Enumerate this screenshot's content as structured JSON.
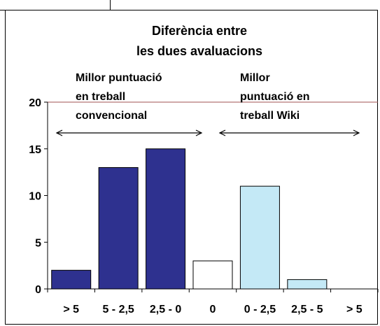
{
  "chart_data": {
    "type": "bar",
    "title_lines": [
      "Diferència entre",
      "les dues avaluacions"
    ],
    "categories": [
      "> 5",
      "5 - 2,5",
      "2,5 - 0",
      "0",
      "0 - 2,5",
      "2,5 - 5",
      "> 5"
    ],
    "values": [
      2,
      13,
      15,
      3,
      11,
      1,
      0
    ],
    "bar_colors": [
      "#2e318f",
      "#2e318f",
      "#2e318f",
      "#ffffff",
      "#c4e9f6",
      "#c4e9f6",
      "#c4e9f6"
    ],
    "ylim": [
      0,
      20
    ],
    "yticks": [
      0,
      5,
      10,
      15,
      20
    ],
    "gridline_color": "#a05050",
    "annotations": {
      "left_lines": [
        "Millor puntuació",
        "en treball",
        "convencional"
      ],
      "right_lines": [
        "Millor",
        "puntuació en",
        "treball Wiki"
      ]
    }
  }
}
